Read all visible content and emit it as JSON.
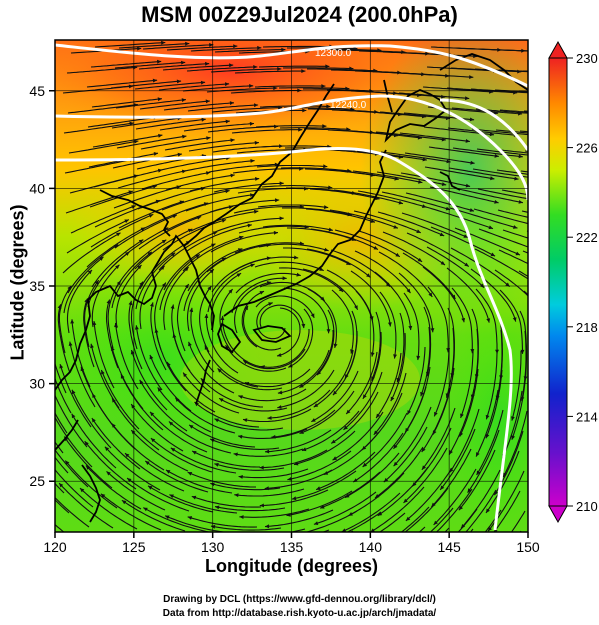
{
  "title": "MSM 00Z29Jul2024 (200.0hPa)",
  "x_axis": {
    "label": "Longitude (degrees)",
    "ticks": [
      "120",
      "125",
      "130",
      "135",
      "140",
      "145",
      "150"
    ],
    "range": [
      120,
      150
    ]
  },
  "y_axis": {
    "label": "Latitude  (degrees)",
    "ticks": [
      "25",
      "30",
      "35",
      "40",
      "45"
    ],
    "range": [
      22.4,
      47.6
    ]
  },
  "colorbar": {
    "ticks": [
      "210",
      "214",
      "218",
      "222",
      "226",
      "230"
    ],
    "min": 210,
    "max": 230,
    "colors": [
      "#cc00cc",
      "#2222cc",
      "#00bbee",
      "#00cc66",
      "#44dd00",
      "#ddee00",
      "#ffaa00",
      "#ff4400",
      "#ee2222"
    ]
  },
  "contours": {
    "labels": [
      "12300.0",
      "12240.0"
    ],
    "color": "#ffffff"
  },
  "anticyclone_center": {
    "lon": 134.0,
    "lat": 33.0
  },
  "credits": {
    "line1": "Drawing by DCL (https://www.gfd-dennou.org/library/dcl/)",
    "line2": "Data from http://database.rish.kyoto-u.ac.jp/arch/jmadata/"
  }
}
